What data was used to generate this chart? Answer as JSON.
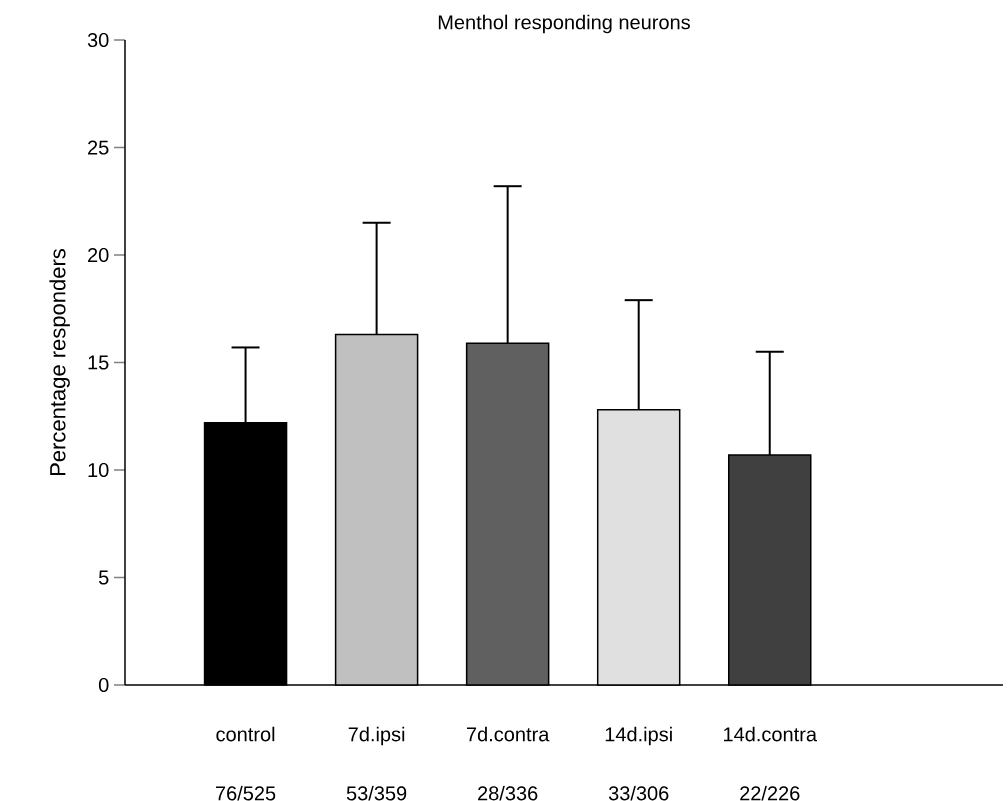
{
  "chart_data": {
    "type": "bar",
    "title": "Menthol responding neurons",
    "ylabel": "Percentage responders",
    "categories": [
      "control",
      "7d.ipsi",
      "7d.contra",
      "14d.ipsi",
      "14d.contra"
    ],
    "values": [
      12.2,
      16.3,
      15.9,
      12.8,
      10.7
    ],
    "colors": [
      "#000000",
      "#c0c0c0",
      "#606060",
      "#e0e0e0",
      "#404040"
    ],
    "errors": [
      [
        12.2,
        15.7
      ],
      [
        16.3,
        21.5
      ],
      [
        15.9,
        23.2
      ],
      [
        12.8,
        17.9
      ],
      [
        10.7,
        15.5
      ]
    ],
    "ylim": [
      0,
      30
    ],
    "yticks": [
      0,
      5,
      10,
      15,
      20,
      25,
      30
    ],
    "annotations": [
      "76/525",
      "53/359",
      "28/336",
      "33/306",
      "22/226"
    ]
  }
}
